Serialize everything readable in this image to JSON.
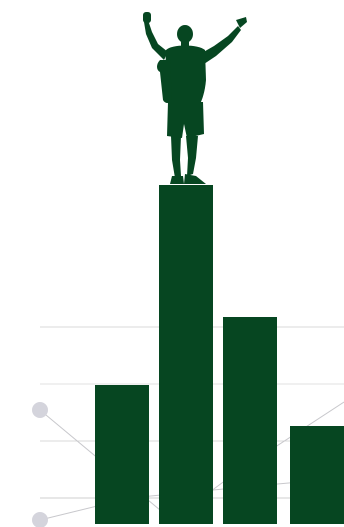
{
  "illustration": {
    "colors": {
      "background": "#ffffff",
      "bar": "#064621",
      "figure": "#064621",
      "gridline": "#d9d9d9",
      "connector_line": "#c8c8cc",
      "dot": "#d4d4dc"
    },
    "bars": [
      {
        "level": 0.41
      },
      {
        "level": 1.0
      },
      {
        "level": 0.61
      },
      {
        "level": 0.29
      }
    ],
    "figure": {
      "icon": "person-arms-raised-silhouette-icon",
      "stands_on_bar": 2
    },
    "markers": [
      {
        "icon": "circle-dot-icon"
      },
      {
        "icon": "circle-dot-icon"
      }
    ]
  }
}
